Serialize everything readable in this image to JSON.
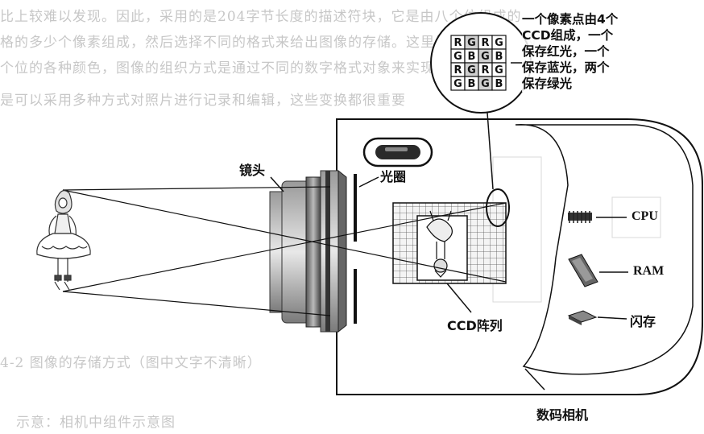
{
  "background_text": {
    "line1": "比上较难以发现。因此，采用的是204字节长度的描述符块，它是由八个位组成的",
    "line2": "格的多少个像素组成，然后选择不同的格式来给出图像的存储。这里是关于数据块的",
    "line3": "个位的各种颜色，图像的组织方式是通过不同的数字格式对象来实现，使得图像可以",
    "line4": "是可以采用多种方式对照片进行记录和编辑，这些变换都很重要",
    "line5": "4-2 图像的存储方式（图中文字不清晰）",
    "line6": "示意：相机中组件示意图"
  },
  "labels": {
    "lens": "镜头",
    "aperture": "光圈",
    "ccd_array": "CCD阵列",
    "cpu": "CPU",
    "ram": "RAM",
    "flash": "闪存",
    "camera": "数码相机"
  },
  "callout": {
    "line1": "一个像素点由4个",
    "line2": "CCD组成，一个",
    "line3": "保存红光，一个",
    "line4": "保存蓝光，两个",
    "line5": "保存绿光"
  },
  "pixel_grid": {
    "row1": [
      "R",
      "G",
      "R",
      "G"
    ],
    "row2": [
      "G",
      "B",
      "G",
      "B"
    ],
    "row3": [
      "R",
      "G",
      "R",
      "G"
    ],
    "row4": [
      "G",
      "B",
      "G",
      "B"
    ]
  },
  "colors": {
    "line": "#111111",
    "cell_fill": "#d0d0d0",
    "grid_fill": "#f4f4f4"
  }
}
